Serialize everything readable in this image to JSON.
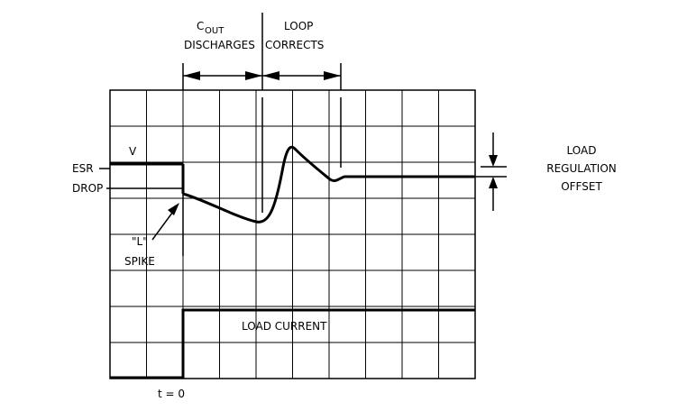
{
  "labels": {
    "cout_c": "C",
    "cout_sub": "OUT",
    "discharges": "DISCHARGES",
    "loop": "LOOP",
    "corrects": "CORRECTS",
    "v": "V",
    "esr": "ESR",
    "drop": "DROP",
    "l_spike_l": "\"L\"",
    "spike": "SPIKE",
    "load_current": "LOAD CURRENT",
    "t0": "t = 0",
    "load": "LOAD",
    "regulation": "REGULATION",
    "offset": "OFFSET"
  },
  "colors": {
    "ink": "#000000",
    "background": "#ffffff"
  }
}
